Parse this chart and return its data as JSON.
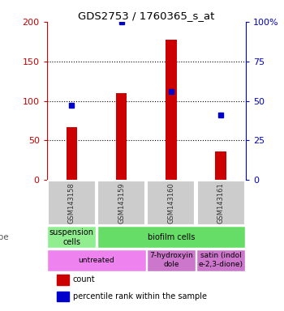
{
  "title": "GDS2753 / 1760365_s_at",
  "samples": [
    "GSM143158",
    "GSM143159",
    "GSM143160",
    "GSM143161"
  ],
  "counts": [
    67,
    110,
    177,
    36
  ],
  "percentile_ranks": [
    47,
    100,
    56,
    41
  ],
  "ylim_left": [
    0,
    200
  ],
  "ylim_right": [
    0,
    100
  ],
  "yticks_left": [
    0,
    50,
    100,
    150,
    200
  ],
  "yticks_right": [
    0,
    25,
    50,
    75,
    100
  ],
  "ytick_labels_right": [
    "0",
    "25",
    "50",
    "75",
    "100%"
  ],
  "bar_color": "#cc0000",
  "dot_color": "#0000cc",
  "cell_type_row": [
    {
      "label": "suspension\ncells",
      "span": 1,
      "color": "#90ee90"
    },
    {
      "label": "biofilm cells",
      "span": 3,
      "color": "#66dd66"
    }
  ],
  "agent_row": [
    {
      "label": "untreated",
      "span": 2,
      "color": "#ee82ee"
    },
    {
      "label": "7-hydroxyin\ndole",
      "span": 1,
      "color": "#cc77cc"
    },
    {
      "label": "satin (indol\ne-2,3-dione)",
      "span": 1,
      "color": "#cc77cc"
    }
  ],
  "left_label_color": "#cc0000",
  "right_label_color": "#0000cc",
  "sample_box_color": "#cccccc",
  "sample_text_color": "#333333"
}
